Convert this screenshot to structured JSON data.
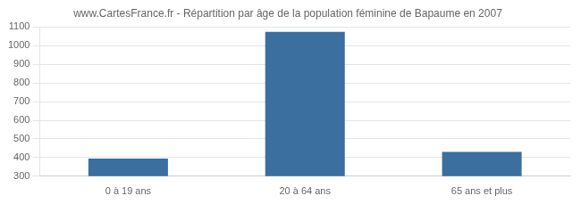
{
  "chart_data": {
    "type": "bar",
    "title": "www.CartesFrance.fr - Répartition par âge de la population féminine de Bapaume en 2007",
    "categories": [
      "0 à 19 ans",
      "20 à 64 ans",
      "65 ans et plus"
    ],
    "values": [
      395,
      1075,
      430
    ],
    "color": "#3a6f9f",
    "ylim": [
      300,
      1100
    ],
    "yticks": [
      300,
      400,
      500,
      600,
      700,
      800,
      900,
      1000,
      1100
    ],
    "grid": true
  }
}
